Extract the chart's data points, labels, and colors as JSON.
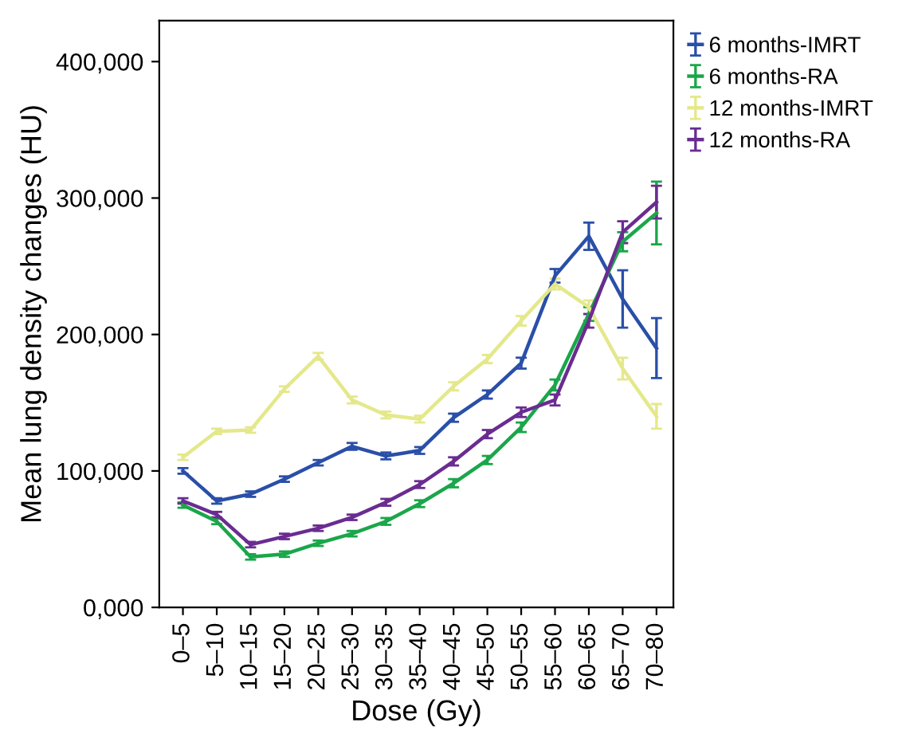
{
  "chart_data": {
    "type": "line",
    "xlabel": "Dose (Gy)",
    "ylabel": "Mean lung density changes (HU)",
    "categories": [
      "0–5",
      "5–10",
      "10–15",
      "15–20",
      "20–25",
      "25–30",
      "30–35",
      "35–40",
      "40–45",
      "45–50",
      "50–55",
      "55–60",
      "60–65",
      "65–70",
      "70–80"
    ],
    "series": [
      {
        "name": "6 months-IMRT",
        "color": "#2a4fa8",
        "values": [
          100000,
          78000,
          83000,
          94000,
          106000,
          118000,
          111000,
          115000,
          139000,
          156000,
          179000,
          243000,
          272000,
          226000,
          190000
        ],
        "errors": [
          2000,
          2000,
          2000,
          2000,
          2000,
          2500,
          2500,
          2500,
          3000,
          3000,
          4000,
          5000,
          10000,
          21000,
          22000
        ]
      },
      {
        "name": "6 months-RA",
        "color": "#1aa64a",
        "values": [
          75000,
          63000,
          37000,
          39000,
          47000,
          54000,
          63000,
          76000,
          91000,
          108000,
          132000,
          163000,
          215000,
          268000,
          289000
        ],
        "errors": [
          2000,
          2000,
          2000,
          2000,
          2000,
          2000,
          2500,
          2500,
          3000,
          3000,
          3500,
          4000,
          5000,
          7000,
          23000
        ]
      },
      {
        "name": "12 months-IMRT",
        "color": "#e4e88a",
        "values": [
          110000,
          129000,
          130000,
          160000,
          184000,
          152000,
          141000,
          138000,
          162000,
          182000,
          210000,
          237000,
          220000,
          175000,
          140000
        ],
        "errors": [
          2000,
          2000,
          2000,
          2000,
          2500,
          2500,
          2500,
          2500,
          3000,
          3000,
          3500,
          4000,
          5000,
          8000,
          9000
        ]
      },
      {
        "name": "12 months-RA",
        "color": "#6a2c91",
        "values": [
          78000,
          68000,
          46000,
          52000,
          58000,
          66000,
          77000,
          90000,
          107000,
          127000,
          143000,
          152000,
          210000,
          275000,
          297000
        ],
        "errors": [
          2000,
          2000,
          2000,
          2000,
          2000,
          2000,
          2500,
          2500,
          3000,
          3000,
          3500,
          4000,
          5000,
          8000,
          12000
        ]
      }
    ],
    "ylim": [
      0,
      430000
    ],
    "yticks": [
      {
        "value": 0,
        "label": "0,000"
      },
      {
        "value": 100000,
        "label": "100,000"
      },
      {
        "value": 200000,
        "label": "200,000"
      },
      {
        "value": 300000,
        "label": "300,000"
      },
      {
        "value": 400000,
        "label": "400,000"
      }
    ],
    "grid": false,
    "legend": "top right",
    "marker": "none",
    "line_style": "solid"
  }
}
